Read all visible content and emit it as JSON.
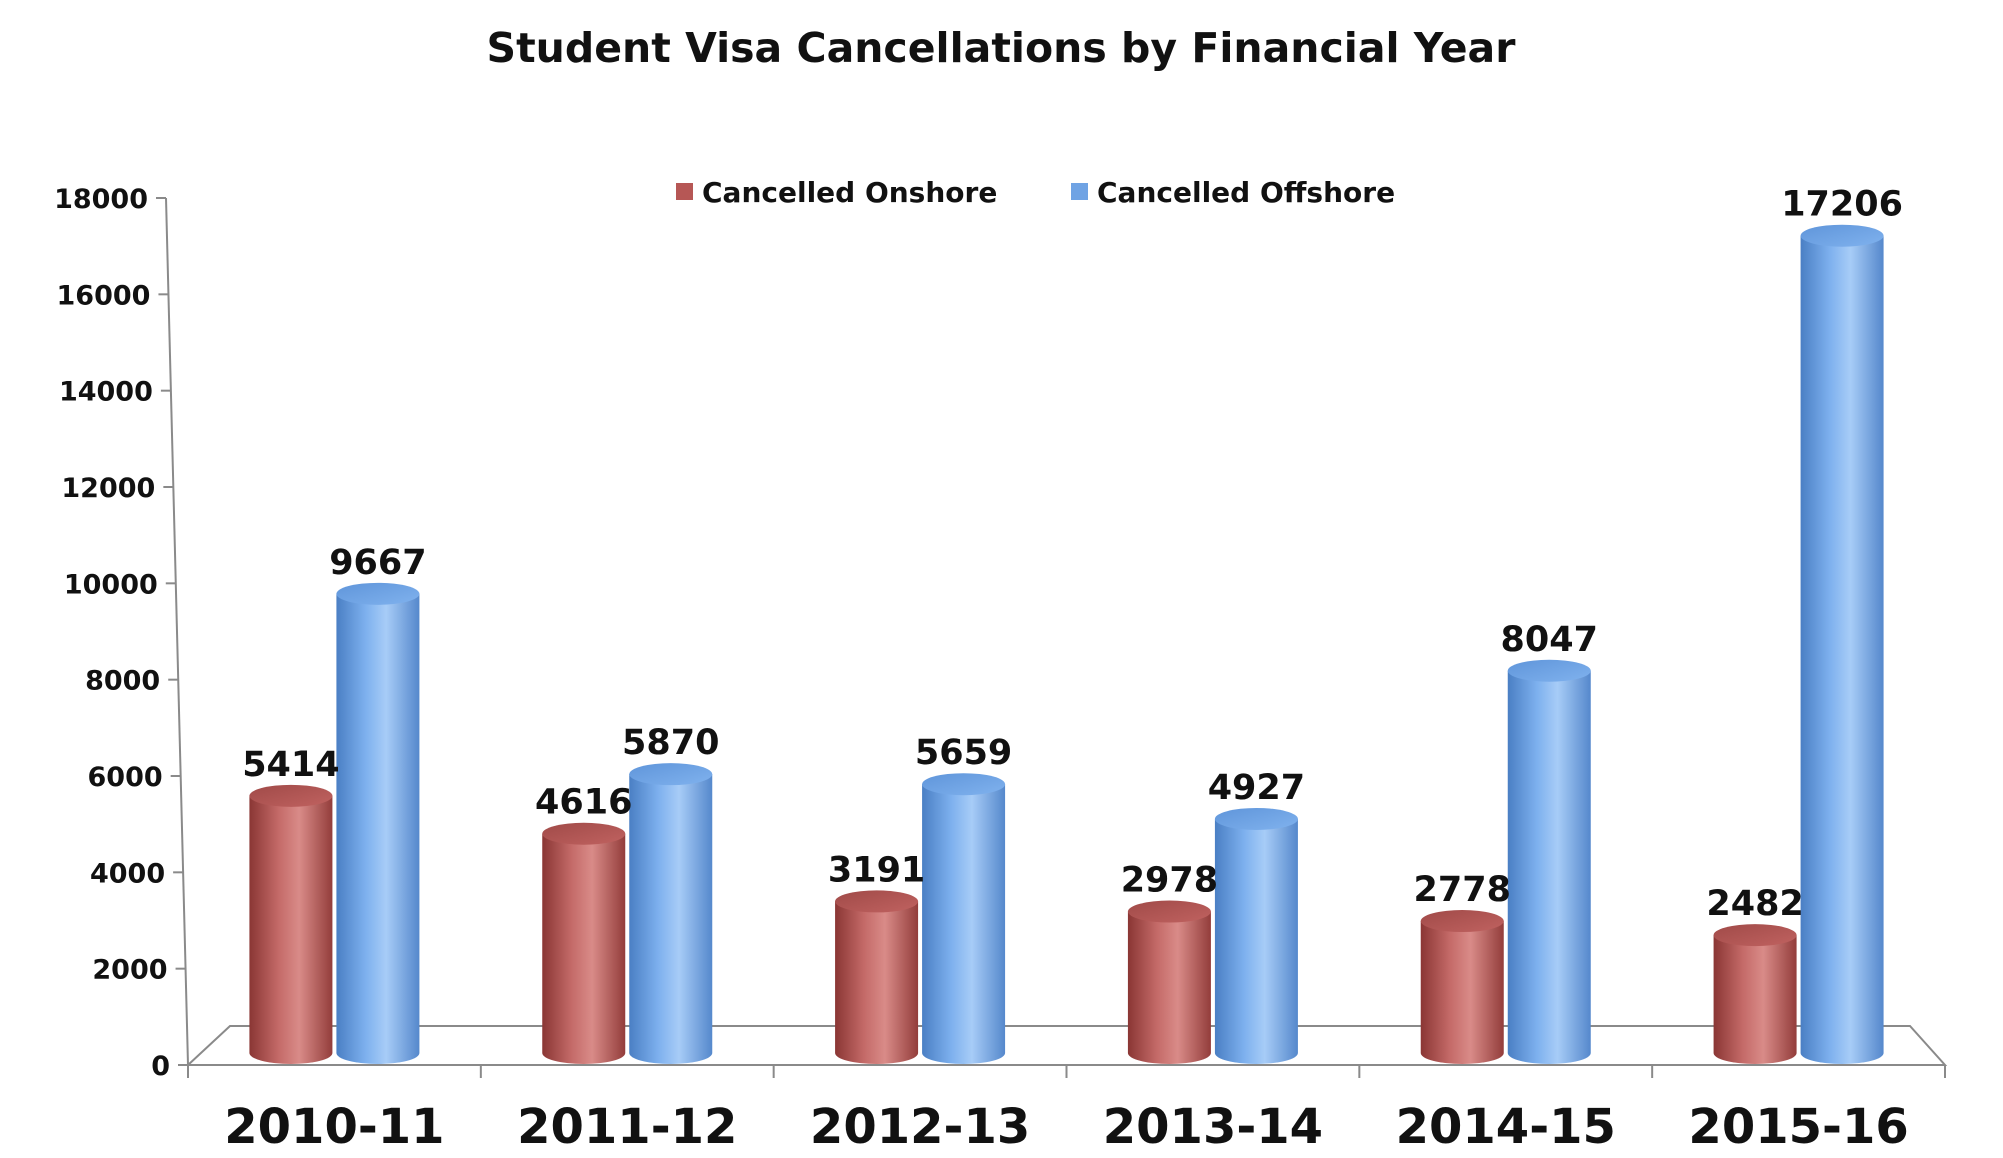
{
  "chart_data": {
    "type": "bar",
    "title": "Student Visa Cancellations by Financial Year",
    "categories": [
      "2010-11",
      "2011-12",
      "2012-13",
      "2013-14",
      "2014-15",
      "2015-16"
    ],
    "series": [
      {
        "name": "Cancelled Onshore",
        "values": [
          5414,
          4616,
          3191,
          2978,
          2778,
          2482
        ],
        "color": "#b65755"
      },
      {
        "name": "Cancelled Offshore",
        "values": [
          9667,
          5870,
          5659,
          4927,
          8047,
          17206
        ],
        "color": "#6fa3e4"
      }
    ],
    "yticks": [
      "0",
      "2000",
      "4000",
      "6000",
      "8000",
      "10000",
      "12000",
      "14000",
      "16000",
      "18000"
    ],
    "ylim": [
      0,
      18000
    ],
    "grid": false,
    "legend_position": "top-center",
    "style": "3d-cylinder"
  }
}
